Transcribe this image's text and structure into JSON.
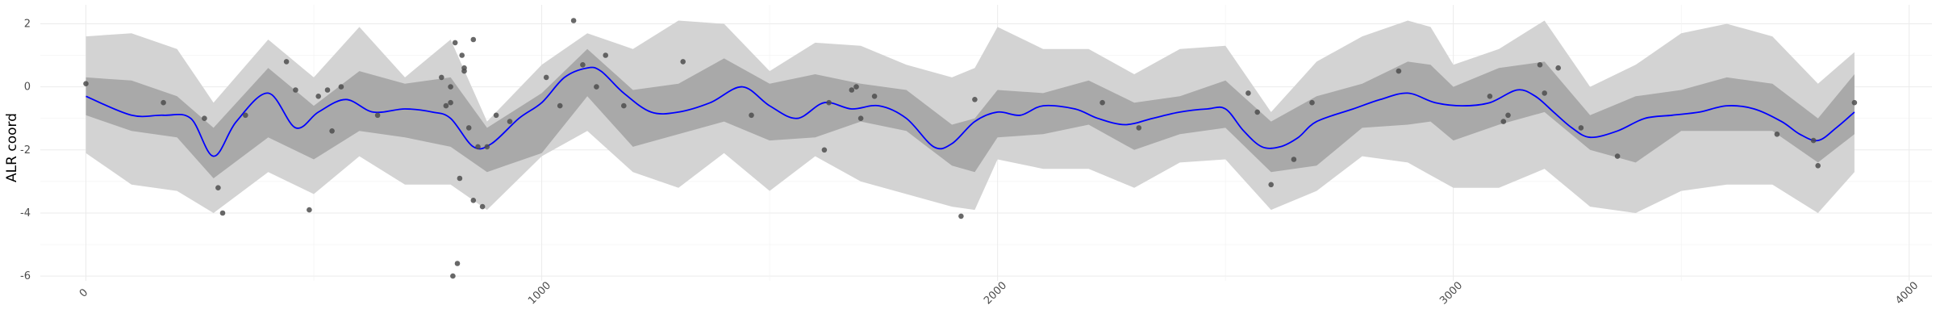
{
  "chart_data": {
    "type": "line",
    "title": "",
    "xlabel": "",
    "ylabel": "ALR coord",
    "xlim": [
      -100,
      4050
    ],
    "ylim": [
      -6.15,
      2.6
    ],
    "x_ticks": [
      0,
      1000,
      2000,
      3000,
      4000
    ],
    "x_tick_labels": [
      "0",
      "1000",
      "2000",
      "3000",
      "4000"
    ],
    "y_ticks": [
      2,
      0,
      -2,
      -4,
      -6
    ],
    "y_tick_labels": [
      "2",
      "0",
      "-2",
      "-4",
      "-6"
    ],
    "grid": true,
    "series": [
      {
        "kind": "ribbon_outer",
        "color": "#d3d3d3",
        "x": [
          0,
          100,
          200,
          280,
          400,
          500,
          600,
          700,
          800,
          880,
          1000,
          1100,
          1200,
          1300,
          1400,
          1500,
          1600,
          1700,
          1800,
          1900,
          1950,
          2000,
          2100,
          2200,
          2300,
          2400,
          2500,
          2600,
          2700,
          2800,
          2900,
          2950,
          3000,
          3100,
          3200,
          3300,
          3400,
          3500,
          3600,
          3700,
          3800,
          3880
        ],
        "upper": [
          1.6,
          1.7,
          1.2,
          -0.5,
          1.5,
          0.3,
          1.9,
          0.3,
          1.5,
          -1.1,
          0.7,
          1.7,
          1.2,
          2.1,
          2.0,
          0.5,
          1.4,
          1.3,
          0.7,
          0.3,
          0.6,
          1.9,
          1.2,
          1.2,
          0.4,
          1.2,
          1.3,
          -0.8,
          0.8,
          1.6,
          2.1,
          1.9,
          0.7,
          1.2,
          2.1,
          0.0,
          0.7,
          1.7,
          2.0,
          1.6,
          0.1,
          1.1
        ],
        "lower": [
          -2.1,
          -3.1,
          -3.3,
          -4.0,
          -2.7,
          -3.4,
          -2.2,
          -3.1,
          -3.1,
          -3.9,
          -2.2,
          -1.4,
          -2.7,
          -3.2,
          -2.1,
          -3.3,
          -2.2,
          -3.0,
          -3.4,
          -3.8,
          -3.9,
          -2.3,
          -2.6,
          -2.6,
          -3.2,
          -2.4,
          -2.3,
          -3.9,
          -3.3,
          -2.2,
          -2.4,
          -2.8,
          -3.2,
          -3.2,
          -2.6,
          -3.8,
          -4.0,
          -3.3,
          -3.1,
          -3.1,
          -4.0,
          -2.7
        ]
      },
      {
        "kind": "ribbon_inner",
        "color": "#a9a9a9",
        "x": [
          0,
          100,
          200,
          280,
          400,
          500,
          600,
          700,
          800,
          880,
          1000,
          1100,
          1200,
          1300,
          1400,
          1500,
          1600,
          1700,
          1800,
          1900,
          1950,
          2000,
          2100,
          2200,
          2300,
          2400,
          2500,
          2600,
          2700,
          2800,
          2900,
          2950,
          3000,
          3100,
          3200,
          3300,
          3400,
          3500,
          3600,
          3700,
          3800,
          3880
        ],
        "upper": [
          0.3,
          0.2,
          -0.3,
          -1.3,
          0.6,
          -0.6,
          0.5,
          0.1,
          0.3,
          -1.3,
          -0.2,
          1.2,
          -0.1,
          0.1,
          0.9,
          0.1,
          0.4,
          0.1,
          -0.1,
          -1.2,
          -1.0,
          -0.1,
          -0.2,
          0.2,
          -0.5,
          -0.3,
          0.2,
          -1.1,
          -0.3,
          0.1,
          0.8,
          0.7,
          0.0,
          0.6,
          0.8,
          -0.9,
          -0.3,
          -0.1,
          0.3,
          0.1,
          -1.0,
          0.4
        ],
        "lower": [
          -0.9,
          -1.4,
          -1.6,
          -2.9,
          -1.6,
          -2.3,
          -1.4,
          -1.6,
          -1.9,
          -2.7,
          -2.1,
          -0.3,
          -1.9,
          -1.5,
          -1.1,
          -1.7,
          -1.6,
          -1.1,
          -1.4,
          -2.5,
          -2.7,
          -1.6,
          -1.5,
          -1.2,
          -2.0,
          -1.5,
          -1.3,
          -2.7,
          -2.5,
          -1.3,
          -1.2,
          -1.1,
          -1.7,
          -1.2,
          -0.8,
          -2.0,
          -2.4,
          -1.4,
          -1.4,
          -1.4,
          -2.4,
          -1.5
        ]
      },
      {
        "kind": "line",
        "color": "#0000ff",
        "x": [
          0,
          100,
          170,
          230,
          280,
          330,
          400,
          460,
          510,
          570,
          630,
          700,
          760,
          800,
          850,
          890,
          950,
          1000,
          1050,
          1100,
          1130,
          1180,
          1240,
          1300,
          1370,
          1440,
          1500,
          1560,
          1620,
          1680,
          1740,
          1800,
          1860,
          1900,
          1950,
          2000,
          2050,
          2100,
          2170,
          2220,
          2280,
          2340,
          2400,
          2460,
          2500,
          2540,
          2580,
          2620,
          2660,
          2700,
          2780,
          2840,
          2900,
          2960,
          3020,
          3080,
          3140,
          3180,
          3220,
          3260,
          3300,
          3360,
          3420,
          3480,
          3540,
          3600,
          3660,
          3720,
          3760,
          3800,
          3840,
          3880
        ],
        "y": [
          -0.3,
          -0.9,
          -0.9,
          -1.0,
          -2.2,
          -1.1,
          -0.2,
          -1.3,
          -0.8,
          -0.4,
          -0.8,
          -0.7,
          -0.8,
          -1.0,
          -1.9,
          -1.8,
          -1.0,
          -0.5,
          0.3,
          0.6,
          0.5,
          -0.2,
          -0.8,
          -0.8,
          -0.5,
          0.0,
          -0.6,
          -1.0,
          -0.5,
          -0.7,
          -0.6,
          -1.0,
          -1.9,
          -1.8,
          -1.1,
          -0.8,
          -0.9,
          -0.6,
          -0.7,
          -1.0,
          -1.2,
          -1.0,
          -0.8,
          -0.7,
          -0.7,
          -1.4,
          -1.9,
          -1.9,
          -1.6,
          -1.1,
          -0.7,
          -0.4,
          -0.2,
          -0.5,
          -0.6,
          -0.5,
          -0.1,
          -0.3,
          -0.8,
          -1.3,
          -1.6,
          -1.4,
          -1.0,
          -0.9,
          -0.8,
          -0.6,
          -0.7,
          -1.1,
          -1.5,
          -1.7,
          -1.3,
          -0.8
        ]
      },
      {
        "kind": "points",
        "color": "#4d4d4d",
        "x": [
          0,
          170,
          260,
          290,
          300,
          350,
          440,
          460,
          490,
          510,
          530,
          540,
          560,
          640,
          780,
          790,
          800,
          800,
          805,
          810,
          815,
          820,
          825,
          830,
          830,
          840,
          850,
          850,
          860,
          870,
          880,
          900,
          930,
          1010,
          1040,
          1070,
          1090,
          1120,
          1140,
          1180,
          1310,
          1460,
          1620,
          1630,
          1680,
          1690,
          1700,
          1730,
          1920,
          1950,
          2230,
          2310,
          2550,
          2570,
          2600,
          2650,
          2690,
          2880,
          3080,
          3110,
          3120,
          3190,
          3200,
          3230,
          3280,
          3360,
          3710,
          3790,
          3800,
          3880
        ],
        "y": [
          0.1,
          -0.5,
          -1.0,
          -3.2,
          -4.0,
          -0.9,
          0.8,
          -0.1,
          -3.9,
          -0.3,
          -0.1,
          -1.4,
          0.0,
          -0.9,
          0.3,
          -0.6,
          0.0,
          -0.5,
          -6.0,
          1.4,
          -5.6,
          -2.9,
          1.0,
          0.6,
          0.5,
          -1.3,
          -3.6,
          1.5,
          -1.9,
          -3.8,
          -1.9,
          -0.9,
          -1.1,
          0.3,
          -0.6,
          2.1,
          0.7,
          0.0,
          1.0,
          -0.6,
          0.8,
          -0.9,
          -2.0,
          -0.5,
          -0.1,
          0.0,
          -1.0,
          -0.3,
          -4.1,
          -0.4,
          -0.5,
          -1.3,
          -0.2,
          -0.8,
          -3.1,
          -2.3,
          -0.5,
          0.5,
          -0.3,
          -1.1,
          -0.9,
          0.7,
          -0.2,
          0.6,
          -1.3,
          -2.2,
          -1.5,
          -1.7,
          -2.5,
          -0.5
        ]
      }
    ]
  }
}
